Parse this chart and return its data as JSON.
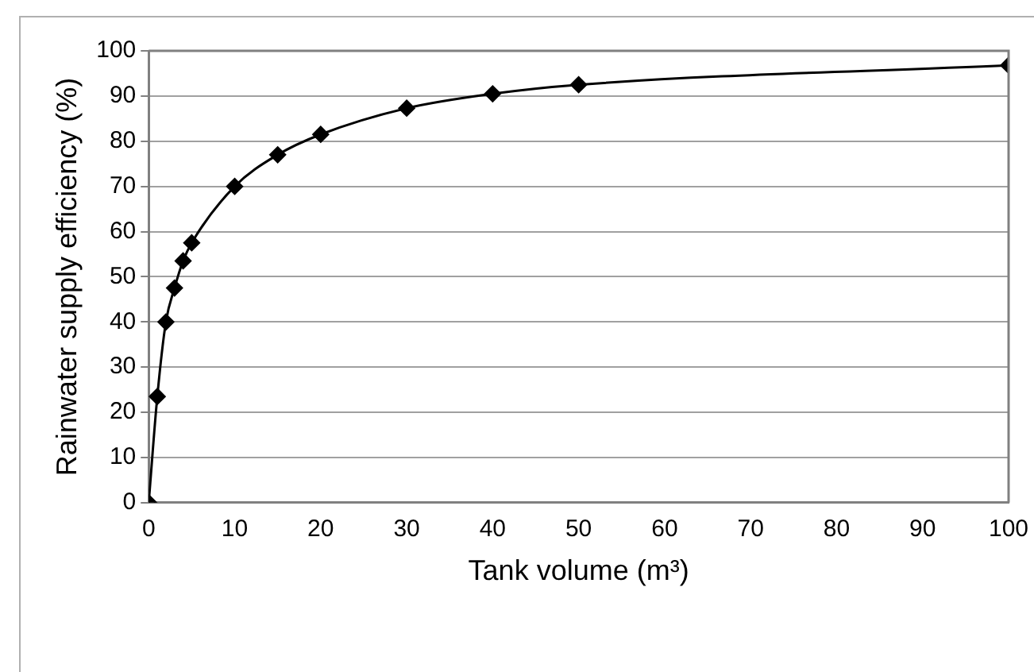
{
  "chart_data": {
    "type": "line",
    "xlabel": "Tank volume (m³)",
    "ylabel": "Rainwater supply efficiency (%)",
    "x": [
      0,
      1,
      2,
      3,
      4,
      5,
      10,
      15,
      20,
      30,
      40,
      50,
      100
    ],
    "series": [
      {
        "color": "#000000",
        "values": [
          0,
          23.5,
          40,
          47.5,
          53.5,
          57.5,
          70,
          77,
          81.5,
          87.3,
          90.5,
          92.5,
          96.8
        ]
      }
    ],
    "xlim": [
      0,
      100
    ],
    "xticks": [
      0,
      10,
      20,
      30,
      40,
      50,
      60,
      70,
      80,
      90,
      100
    ],
    "ylim": [
      0,
      100
    ],
    "yticks": [
      0,
      10,
      20,
      30,
      40,
      50,
      60,
      70,
      80,
      90,
      100
    ],
    "grid": "y",
    "legend": false,
    "marker": "diamond",
    "line_style": "solid"
  }
}
